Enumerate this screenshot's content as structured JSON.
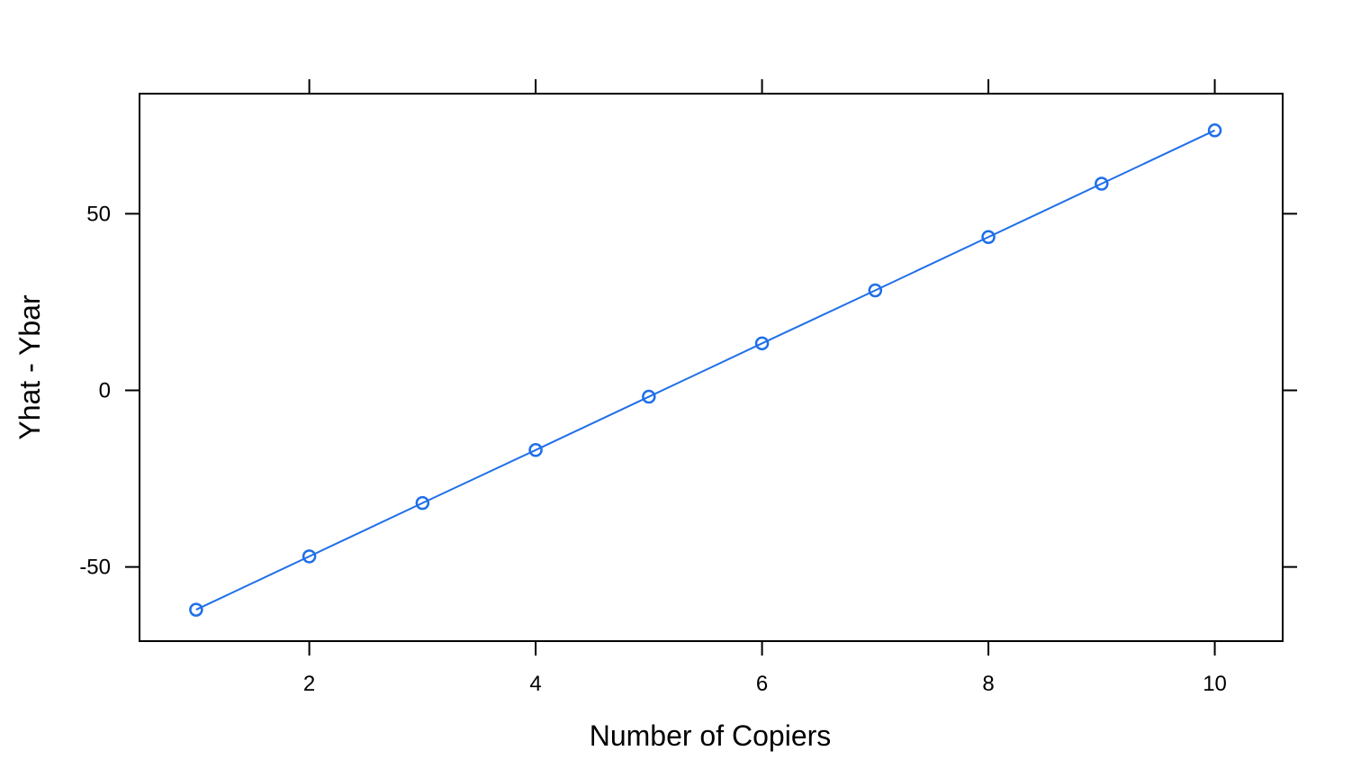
{
  "chart_data": {
    "type": "line",
    "title": "",
    "xlabel": "Number of Copiers",
    "ylabel": "Yhat - Ybar",
    "xlim": [
      0.5,
      10.6
    ],
    "ylim": [
      -71,
      84
    ],
    "x_ticks": [
      2,
      4,
      6,
      8,
      10
    ],
    "x_tick_labels": [
      "2",
      "4",
      "6",
      "8",
      "10"
    ],
    "y_ticks": [
      -50,
      0,
      50
    ],
    "y_tick_labels": [
      "-50",
      "0",
      "50"
    ],
    "grid": false,
    "series": [
      {
        "color": "#1f6fe8",
        "markers": "open-circle",
        "x": [
          1,
          2,
          3,
          4,
          5,
          6,
          7,
          8,
          9,
          10
        ],
        "y": [
          -62.1,
          -47.0,
          -31.9,
          -16.9,
          -1.8,
          13.3,
          28.3,
          43.4,
          58.5,
          73.6
        ]
      }
    ]
  }
}
